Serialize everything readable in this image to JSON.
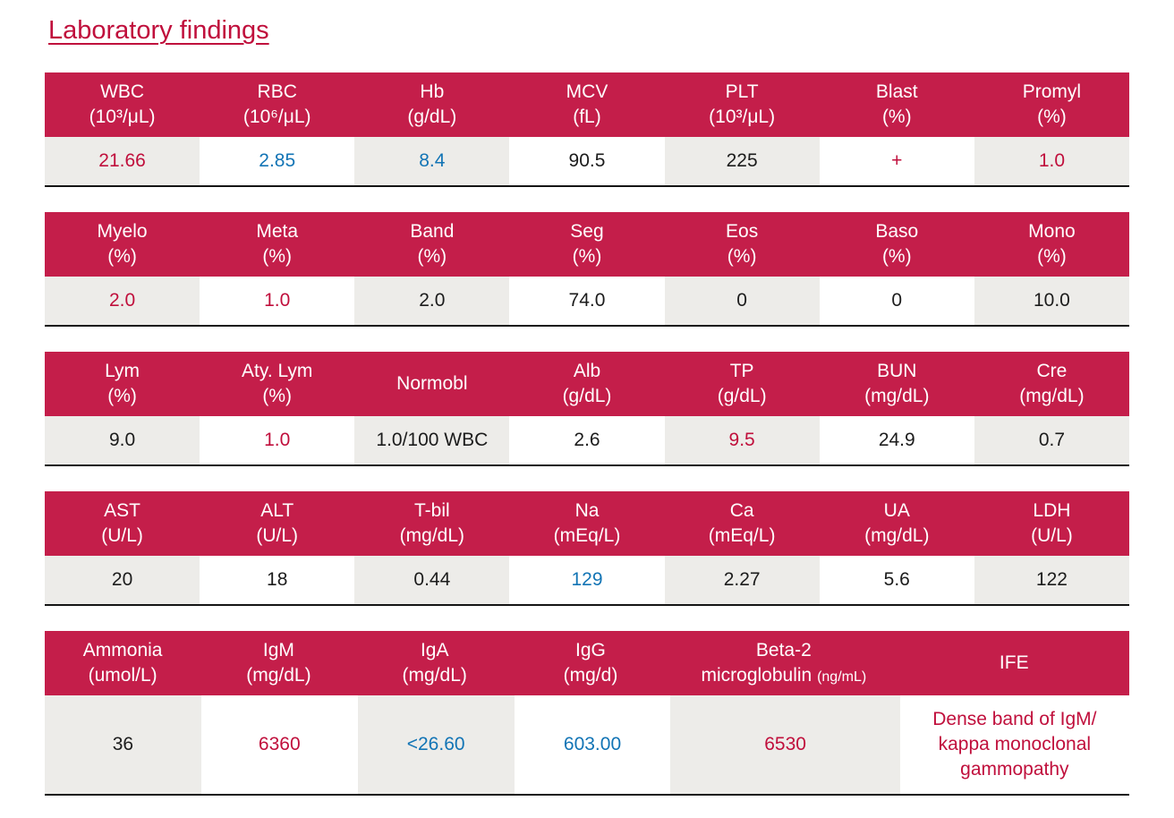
{
  "page": {
    "title": "Laboratory findings"
  },
  "colors": {
    "header_bg": "#C41E4A",
    "text_red": "#C00F3C",
    "text_blue": "#1274B5",
    "text_black": "#1C1C1C",
    "cell_gray": "#EDECE9",
    "title_red": "#C00F3C",
    "border_dark": "#151515"
  },
  "tables": [
    {
      "columns": [
        {
          "name": "WBC",
          "unit": "(10³/μL)",
          "value": "21.66",
          "value_color": "text_red"
        },
        {
          "name": "RBC",
          "unit": "(10⁶/μL)",
          "value": "2.85",
          "value_color": "text_blue"
        },
        {
          "name": "Hb",
          "unit": "(g/dL)",
          "value": "8.4",
          "value_color": "text_blue"
        },
        {
          "name": "MCV",
          "unit": "(fL)",
          "value": "90.5",
          "value_color": "text_black"
        },
        {
          "name": "PLT",
          "unit": "(10³/μL)",
          "value": "225",
          "value_color": "text_black"
        },
        {
          "name": "Blast",
          "unit": "(%)",
          "value": "+",
          "value_color": "text_red"
        },
        {
          "name": "Promyl",
          "unit": "(%)",
          "value": "1.0",
          "value_color": "text_red"
        }
      ]
    },
    {
      "columns": [
        {
          "name": "Myelo",
          "unit": "(%)",
          "value": "2.0",
          "value_color": "text_red"
        },
        {
          "name": "Meta",
          "unit": "(%)",
          "value": "1.0",
          "value_color": "text_red"
        },
        {
          "name": "Band",
          "unit": "(%)",
          "value": "2.0",
          "value_color": "text_black"
        },
        {
          "name": "Seg",
          "unit": "(%)",
          "value": "74.0",
          "value_color": "text_black"
        },
        {
          "name": "Eos",
          "unit": "(%)",
          "value": "0",
          "value_color": "text_black"
        },
        {
          "name": "Baso",
          "unit": "(%)",
          "value": "0",
          "value_color": "text_black"
        },
        {
          "name": "Mono",
          "unit": "(%)",
          "value": "10.0",
          "value_color": "text_black"
        }
      ]
    },
    {
      "columns": [
        {
          "name": "Lym",
          "unit": "(%)",
          "value": "9.0",
          "value_color": "text_black"
        },
        {
          "name": "Aty. Lym",
          "unit": "(%)",
          "value": "1.0",
          "value_color": "text_red"
        },
        {
          "name": "Normobl",
          "unit": "",
          "value": "1.0/100 WBC",
          "value_color": "text_black"
        },
        {
          "name": "Alb",
          "unit": "(g/dL)",
          "value": "2.6",
          "value_color": "text_black"
        },
        {
          "name": "TP",
          "unit": "(g/dL)",
          "value": "9.5",
          "value_color": "text_red"
        },
        {
          "name": "BUN",
          "unit": "(mg/dL)",
          "value": "24.9",
          "value_color": "text_black"
        },
        {
          "name": "Cre",
          "unit": "(mg/dL)",
          "value": "0.7",
          "value_color": "text_black"
        }
      ]
    },
    {
      "columns": [
        {
          "name": "AST",
          "unit": "(U/L)",
          "value": "20",
          "value_color": "text_black"
        },
        {
          "name": "ALT",
          "unit": "(U/L)",
          "value": "18",
          "value_color": "text_black"
        },
        {
          "name": "T-bil",
          "unit": "(mg/dL)",
          "value": "0.44",
          "value_color": "text_black"
        },
        {
          "name": "Na",
          "unit": "(mEq/L)",
          "value": "129",
          "value_color": "text_blue"
        },
        {
          "name": "Ca",
          "unit": "(mEq/L)",
          "value": "2.27",
          "value_color": "text_black"
        },
        {
          "name": "UA",
          "unit": "(mg/dL)",
          "value": "5.6",
          "value_color": "text_black"
        },
        {
          "name": "LDH",
          "unit": "(U/L)",
          "value": "122",
          "value_color": "text_black"
        }
      ]
    },
    {
      "columns": [
        {
          "name": "Ammonia",
          "unit": "(umol/L)",
          "value": "36",
          "value_color": "text_black"
        },
        {
          "name": "IgM",
          "unit": "(mg/dL)",
          "value": "6360",
          "value_color": "text_red"
        },
        {
          "name": "IgA",
          "unit": "(mg/dL)",
          "value": "<26.60",
          "value_color": "text_blue"
        },
        {
          "name": "IgG",
          "unit": "(mg/d)",
          "value": "603.00",
          "value_color": "text_blue"
        },
        {
          "name": "Beta-2",
          "unit": "microglobulin",
          "unit_small": "(ng/mL)",
          "value": "6530",
          "value_color": "text_red",
          "wide": true
        },
        {
          "name": "IFE",
          "unit": "",
          "value": "Dense band of IgM/\nkappa monoclonal\ngammopathy",
          "value_color": "text_red",
          "wide": true
        }
      ]
    }
  ]
}
